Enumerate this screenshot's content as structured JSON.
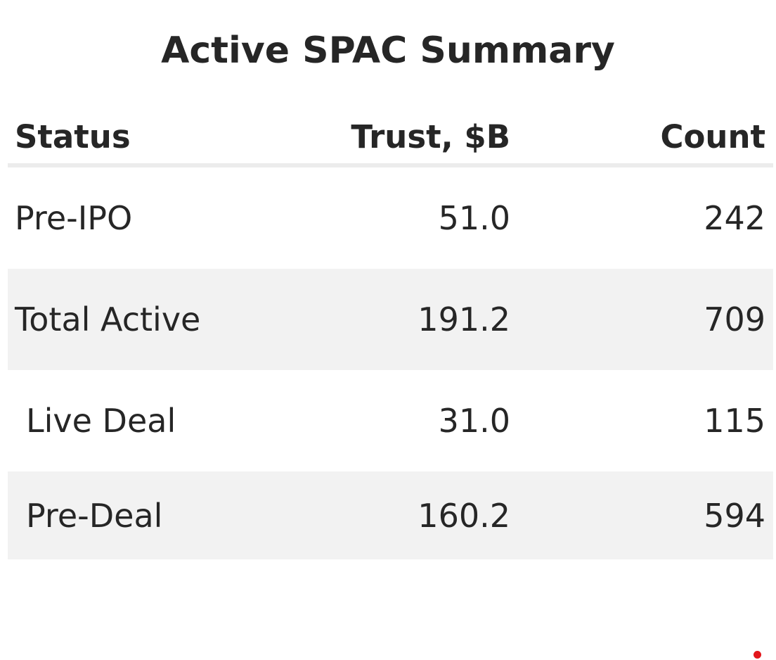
{
  "chart_data": {
    "type": "table",
    "title": "Active SPAC Summary",
    "columns": [
      "Status",
      "Trust, $B",
      "Count"
    ],
    "rows": [
      {
        "status": "Pre-IPO",
        "trust": "51.0",
        "count": "242",
        "indent": false
      },
      {
        "status": "Total Active",
        "trust": "191.2",
        "count": "709",
        "indent": false
      },
      {
        "status": "Live Deal",
        "trust": "31.0",
        "count": "115",
        "indent": true
      },
      {
        "status": "Pre-Deal",
        "trust": "160.2",
        "count": "594",
        "indent": true
      }
    ]
  },
  "colors": {
    "text": "#262626",
    "stripe": "#f2f2f2",
    "header_rule": "#ececec",
    "marker": "#e3161b"
  }
}
